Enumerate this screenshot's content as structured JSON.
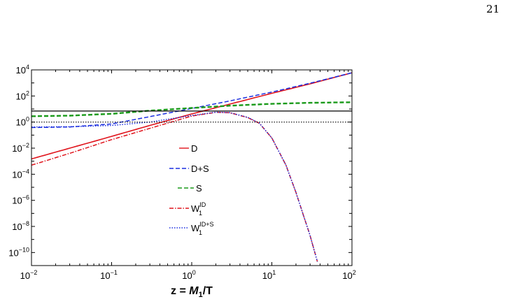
{
  "page_number": "21",
  "chart_data": {
    "type": "line",
    "xlabel": {
      "prefix": "z = ",
      "var": "M",
      "sub": "1",
      "suffix": "/T"
    },
    "x_scale": "log",
    "y_scale": "log",
    "xlim": [
      0.01,
      100
    ],
    "ylim": [
      1e-11,
      10000
    ],
    "x_ticks": [
      {
        "base": "10",
        "exp": "−2",
        "value": 0.01
      },
      {
        "base": "10",
        "exp": "−1",
        "value": 0.1
      },
      {
        "base": "10",
        "exp": "0",
        "value": 1
      },
      {
        "base": "10",
        "exp": "1",
        "value": 10
      },
      {
        "base": "10",
        "exp": "2",
        "value": 100
      }
    ],
    "y_ticks": [
      {
        "base": "10",
        "exp": "4",
        "value": 10000
      },
      {
        "base": "10",
        "exp": "2",
        "value": 100
      },
      {
        "base": "10",
        "exp": "0",
        "value": 1
      },
      {
        "base": "10",
        "exp": "−2",
        "value": 0.01
      },
      {
        "base": "10",
        "exp": "−4",
        "value": 0.0001
      },
      {
        "base": "10",
        "exp": "−6",
        "value": 1e-06
      },
      {
        "base": "10",
        "exp": "−8",
        "value": 1e-08
      },
      {
        "base": "10",
        "exp": "−10",
        "value": 1e-10
      }
    ],
    "reference_lines": [
      {
        "y": 7,
        "style": "solid",
        "color": "#000000"
      },
      {
        "y": 1,
        "style": "dotted",
        "color": "#000000"
      }
    ],
    "series": [
      {
        "name": "D",
        "color": "#e0141c",
        "style": "solid",
        "x": [
          0.01,
          0.03,
          0.1,
          0.3,
          1,
          3,
          10,
          30,
          100
        ],
        "y": [
          0.0015,
          0.01,
          0.08,
          0.55,
          4.2,
          24,
          160,
          850,
          6000
        ]
      },
      {
        "name": "D+S",
        "color": "#1a2ee0",
        "style": "dashed",
        "x": [
          0.01,
          0.03,
          0.1,
          0.3,
          1,
          3,
          10,
          30,
          100
        ],
        "y": [
          0.38,
          0.42,
          0.72,
          2.6,
          11,
          42,
          200,
          950,
          6000
        ]
      },
      {
        "name": "S",
        "color": "#1a9a1a",
        "style": "dashed",
        "x": [
          0.01,
          0.03,
          0.1,
          0.3,
          1,
          3,
          10,
          30,
          100
        ],
        "y": [
          2.8,
          3.1,
          4.3,
          7.5,
          12,
          18,
          25,
          30,
          33
        ]
      },
      {
        "name": "W_1^ID",
        "color": "#e0141c",
        "style": "dashdot",
        "x": [
          0.01,
          0.03,
          0.1,
          0.3,
          1,
          2,
          3,
          5,
          7,
          10,
          15,
          20,
          30,
          37
        ],
        "y": [
          0.0005,
          0.004,
          0.045,
          0.33,
          2.9,
          5.6,
          5.2,
          2.2,
          0.8,
          0.06,
          0.0005,
          4e-06,
          2e-09,
          2e-11
        ]
      },
      {
        "name": "W_1^ID+S",
        "color": "#1a2ee0",
        "style": "dotted",
        "x": [
          0.01,
          0.03,
          0.1,
          0.3,
          1,
          2,
          3,
          5,
          7,
          10,
          15,
          20,
          30,
          37
        ],
        "y": [
          0.42,
          0.44,
          0.55,
          1.0,
          3.2,
          5.7,
          5.3,
          2.3,
          0.82,
          0.06,
          0.0005,
          4e-06,
          2e-09,
          2e-11
        ]
      }
    ],
    "legend": [
      {
        "base": "D",
        "sup": "",
        "sub": ""
      },
      {
        "base": "D+S",
        "sup": "",
        "sub": ""
      },
      {
        "base": "S",
        "sup": "",
        "sub": ""
      },
      {
        "base": "W",
        "sup": "ID",
        "sub": "1"
      },
      {
        "base": "W",
        "sup": "ID+S",
        "sub": "1"
      }
    ],
    "legend_placement": "center-left",
    "grid": false
  }
}
